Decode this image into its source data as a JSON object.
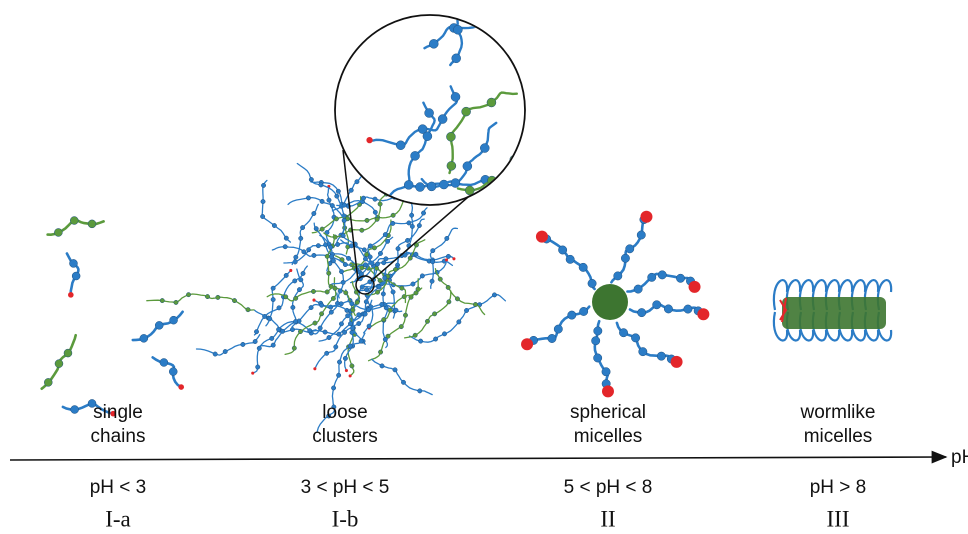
{
  "stages": [
    {
      "name": [
        "single",
        "chains"
      ],
      "condition": "pH < 3",
      "phase": "I-a"
    },
    {
      "name": [
        "loose",
        "clusters"
      ],
      "condition": "3 < pH < 5",
      "phase": "I-b"
    },
    {
      "name": [
        "spherical",
        "micelles"
      ],
      "condition": "5 < pH < 8",
      "phase": "II"
    },
    {
      "name": [
        "wormlike",
        "micelles"
      ],
      "condition": "pH > 8",
      "phase": "III"
    }
  ],
  "axis_label": "pH"
}
